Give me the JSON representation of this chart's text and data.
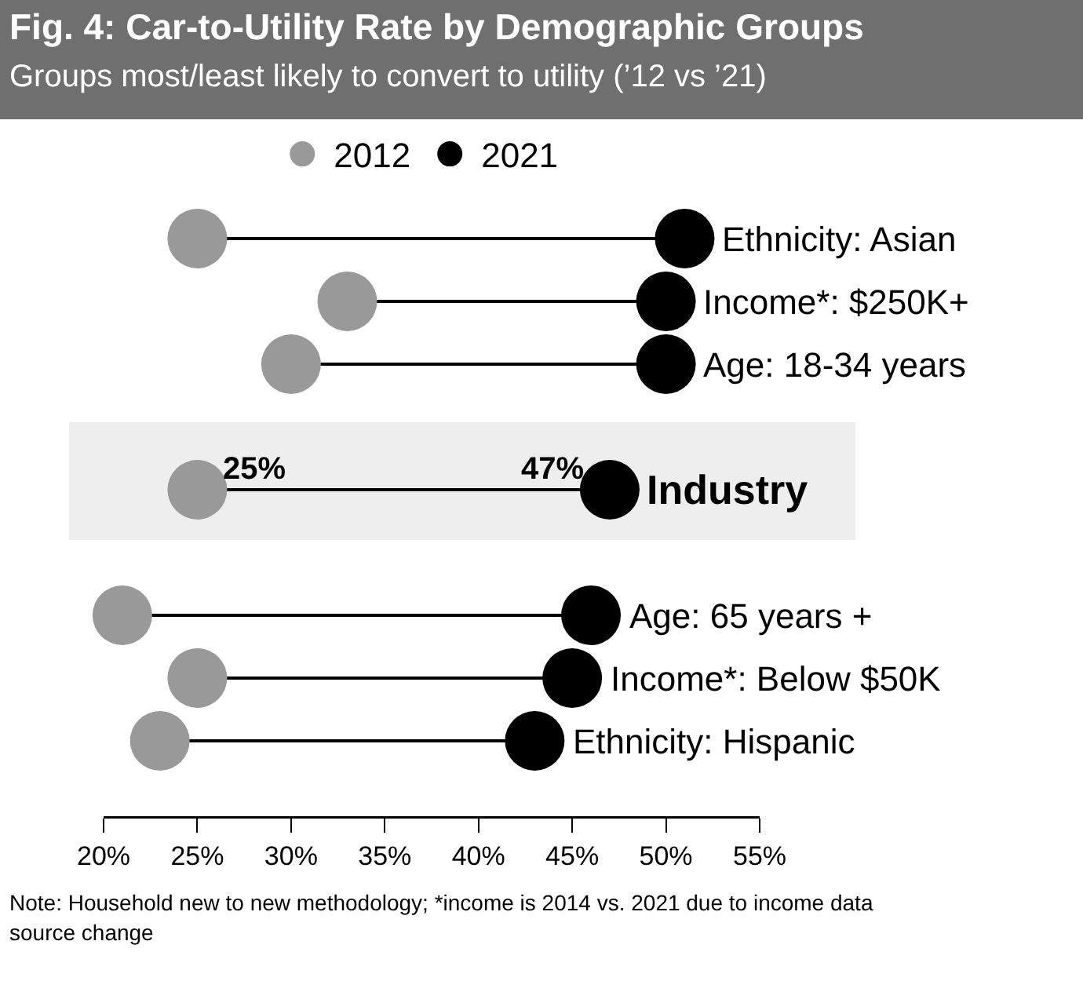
{
  "chart_data": {
    "type": "scatter",
    "orientation": "horizontal",
    "title": "Fig. 4: Car-to-Utility Rate by Demographic Groups",
    "subtitle": "Groups most/least likely to convert to utility (’12 vs ’21)",
    "categories": [
      "Ethnicity: Asian",
      "Income*: $250K+",
      "Age: 18-34 years",
      null,
      "Industry",
      null,
      "Age: 65 years +",
      "Income*: Below $50K",
      "Ethnicity: Hispanic"
    ],
    "series": [
      {
        "name": "2012",
        "color": "#999999",
        "values": [
          25,
          33,
          30,
          null,
          25,
          null,
          21,
          25,
          23
        ],
        "value_labels": [
          null,
          null,
          null,
          null,
          "25%",
          null,
          null,
          null,
          null
        ]
      },
      {
        "name": "2021",
        "color": "#000000",
        "values": [
          51,
          50,
          50,
          null,
          47,
          null,
          46,
          45,
          43
        ],
        "value_labels": [
          null,
          null,
          null,
          null,
          "47%",
          null,
          null,
          null,
          null
        ]
      }
    ],
    "xlim": [
      20,
      55
    ],
    "xticks": [
      {
        "value": 20,
        "label": "20%"
      },
      {
        "value": 25,
        "label": "25%"
      },
      {
        "value": 30,
        "label": "30%"
      },
      {
        "value": 35,
        "label": "35%"
      },
      {
        "value": 40,
        "label": "40%"
      },
      {
        "value": 45,
        "label": "45%"
      },
      {
        "value": 50,
        "label": "50%"
      },
      {
        "value": 55,
        "label": "55%"
      }
    ],
    "legend": "top",
    "marker": "circle",
    "grid": false,
    "annotations": [
      "Note: Household new to new methodology; *income is 2014 vs. 2021 due to income data source change"
    ]
  }
}
